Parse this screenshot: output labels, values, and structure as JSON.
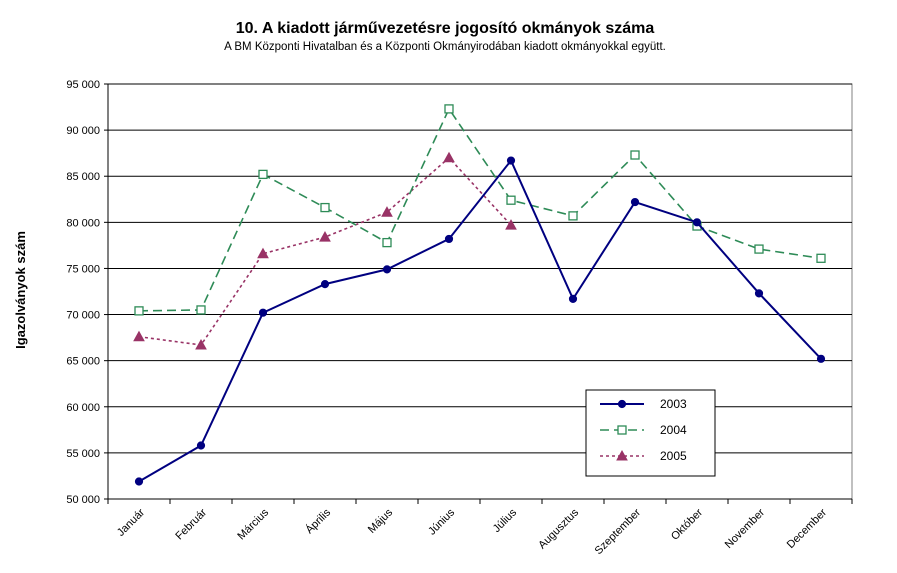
{
  "chart_data": {
    "type": "line",
    "title": "10. A  kiadott járművezetésre  jogosító okmányok száma",
    "subtitle": "A BM Központi Hivatalban és a Központi Okmányirodában kiadott okmányokkal együtt.",
    "ylabel": "Igazolványok szám",
    "xlabel": "",
    "ylim": [
      50000,
      95000
    ],
    "yticks": [
      50000,
      55000,
      60000,
      65000,
      70000,
      75000,
      80000,
      85000,
      90000,
      95000
    ],
    "ytick_labels": [
      "50 000",
      "55 000",
      "60 000",
      "65 000",
      "70 000",
      "75 000",
      "80 000",
      "85 000",
      "90 000",
      "95 000"
    ],
    "grid": "horizontal",
    "legend_position": "bottom-right",
    "categories": [
      "Január",
      "Február",
      "Március",
      "Április",
      "Május",
      "Június",
      "Július",
      "Augusztus",
      "Szeptember",
      "Október",
      "November",
      "December"
    ],
    "series": [
      {
        "name": "2003",
        "color": "#000080",
        "line": "solid",
        "marker": "filled-circle",
        "values": [
          51900,
          55800,
          70200,
          73300,
          74900,
          78200,
          86700,
          71700,
          82200,
          80000,
          72300,
          65200
        ]
      },
      {
        "name": "2004",
        "color": "#2E8B57",
        "line": "dashed",
        "marker": "open-square",
        "values": [
          70400,
          70500,
          85200,
          81600,
          77800,
          92300,
          82400,
          80700,
          87300,
          79600,
          77100,
          76100
        ]
      },
      {
        "name": "2005",
        "color": "#993366",
        "line": "dotted",
        "marker": "filled-triangle",
        "values": [
          67600,
          66700,
          76600,
          78400,
          81100,
          87000,
          79700,
          null,
          null,
          null,
          null,
          null
        ]
      }
    ]
  }
}
